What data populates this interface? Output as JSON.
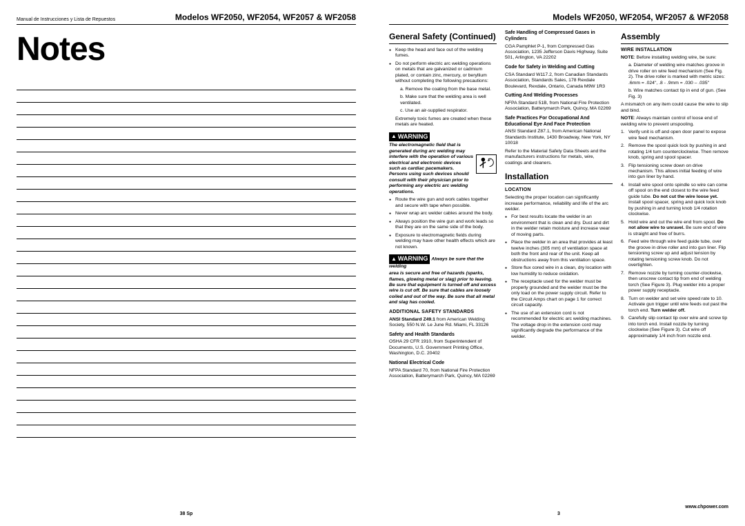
{
  "left": {
    "header_small": "Manual de Instrucciones y Lista de Repuestos",
    "header_models": "Modelos WF2050, WF2054, WF2057 & WF2058",
    "title": "Notes",
    "footer": "38 Sp",
    "line_count": 29
  },
  "right": {
    "header_models": "Models WF2050, WF2054, WF2057 & WF2058",
    "footer_page": "3",
    "footer_url": "www.chpower.com",
    "col1": {
      "title": "General Safety (Continued)",
      "bullets1": [
        "Keep the head and face out of the welding fumes.",
        "Do not perform electric arc welding operations on metals that are galvanized or cadmium plated, or contain zinc, mercury, or beryllium without completing the following precautions:"
      ],
      "sub_a": "a. Remove the coating from the base metal.",
      "sub_b": "b. Make sure that the welding area is well ventilated.",
      "sub_c": "c. Use an air-supplied respirator.",
      "after_c": "Extremely toxic fumes are created when these metals are heated.",
      "warn_label": "WARNING",
      "warn1_text": "The electromagnetic field that is generated during arc welding may interfere with the operation of various electrical and electronic devices such as cardiac pacemakers. Persons using such devices should consult with their physician prior to performing any electric arc welding operations.",
      "bullets2": [
        "Route the wire gun and work cables together and secure with tape when possible.",
        "Never wrap arc welder cables around the body.",
        "Always position the wire gun and work leads so that they are on the same side of the body.",
        "Exposure to electromagnetic fields during welding may have other health effects which are not known."
      ],
      "warn2_lead": "Always be sure that the welding",
      "warn2_text": "area is secure and free of hazards (sparks, flames, glowing metal or slag) prior to leaving. Be sure that equipment is turned off and excess wire is cut off. Be sure that cables are loosely coiled and out of the way. Be sure that all metal and slag has cooled.",
      "addl_std_head": "ADDITIONAL SAFETY STANDARDS",
      "ansi_line": "ANSI Standard Z49.1",
      "ansi_rest": " from American Welding Society, 550 N.W. Le June Rd. Miami, FL 33126",
      "safety_health_head": "Safety and Health Standards",
      "osha": "OSHA 29 CFR 1910, from Superintendent of Documents, U.S. Government Printing Office, Washington, D.C. 20402",
      "nec_head": "National Electrical Code",
      "nec": "NFPA Standard 70, from National Fire Protection Association, Batterymarch Park, Quincy, MA 02269"
    },
    "col2": {
      "safe_handling_head": "Safe Handling of Compressed Gases in Cylinders",
      "safe_handling": "CGA Pamphlet P-1, from Compressed Gas Association, 1235 Jefferson Davis Highway, Suite 501, Arlington, VA 22202",
      "code_head": "Code for Safety in Welding and Cutting",
      "code": "CSA Standard W117.2, from Canadian Standards Association, Standards Sales, 178 Rexdale Boulevard, Rexdale, Ontario, Canada M9W 1R3",
      "cutting_head": "Cutting And Welding Processes",
      "cutting": "NFPA Standard 51B, from National Fire Protection Association, Batterymarch Park, Quincy, MA 02269",
      "safe_prac_head": "Safe Practices For Occupational And Educational Eye And Face Protection",
      "safe_prac": "ANSI Standard Z87.1, from American National Standards Institute, 1430 Broadway, New York, NY 10018",
      "msds": "Refer to the Material Safety Data Sheets and the manufacturers instructions for metals, wire, coatings and cleaners.",
      "install_title": "Installation",
      "loc_head": "LOCATION",
      "loc_intro": "Selecting the proper location can significantly increase performance, reliability and life of the arc welder.",
      "install_bullets": [
        "For best results locate the welder in an environment that is clean and dry. Dust and dirt in the welder retain moisture and increase wear of moving parts.",
        "Place the welder in an area that provides at least twelve inches (305 mm) of ventilation space at both the front and rear of the unit. Keep all obstructions away from this ventilation space.",
        "Store flux cored wire in a clean, dry location with low humidity to reduce oxidation.",
        "The receptacle used for the welder must be properly grounded and the welder must be the only load on the power supply circuit. Refer to the Circuit Amps chart on page 1 for correct circuit capacity.",
        "The use of an extension cord is not recommended for electric arc welding machines. The voltage drop in the extension cord may significantly degrade the performance of the welder."
      ]
    },
    "col3": {
      "assembly_title": "Assembly",
      "wire_head": "WIRE INSTALLATION",
      "note_lead": "NOTE",
      "note_text": ": Before installing welding wire, be sure:",
      "sub_a": "a. Diameter of welding wire matches groove in drive roller on wire feed mechanism (See Fig. 2). The drive roller is marked with metric sizes: .6mm = .024\", .8 - .9mm = .030 – .035\"",
      "sub_b": "b. Wire matches contact tip in end of gun. (See Fig. 3)",
      "mismatch": "A mismatch on any item could cause the wire to slip and bind.",
      "note2_text": ": Always maintain control of loose end of welding wire to prevent unspooling.",
      "steps": [
        "Verify unit is off and open door panel to expose wire feed mechanism.",
        "Remove the spool quick lock by pushing in and rotating 1/4 turn counterclockwise. Then remove knob, spring and spool spacer.",
        "Flip tensioning screw down on drive mechanism. This allows initial feeding of wire into gun liner by hand.",
        "Install wire spool onto spindle so wire can come off spool on the end closest to the wire feed guide tube. <b>Do not cut the wire loose yet.</b> Install spool spacer, spring and quick lock knob by pushing in and turning knob 1/4 rotation clockwise.",
        "Hold wire and cut the wire end from spool. <b>Do not allow wire to unravel.</b> Be sure end of wire is straight and free of burrs.",
        "Feed wire through wire feed guide tube, over the groove in drive roller and into gun liner. Flip tensioning screw up and adjust tension by rotating tensioning screw knob. Do not overtighten.",
        "Remove nozzle by turning counter-clockwise, then unscrew contact tip from end of welding torch (See Figure 3). Plug welder into a proper power supply receptacle.",
        "Turn on welder and set wire speed rate to 10. Activate gun trigger until wire feeds out past the torch end. <b>Turn welder off.</b>",
        "Carefully slip contact tip over wire and screw tip into torch end. Install nozzle by turning clockwise (See Figure 3). Cut wire off approximately 1/4 inch from nozzle end."
      ]
    }
  }
}
